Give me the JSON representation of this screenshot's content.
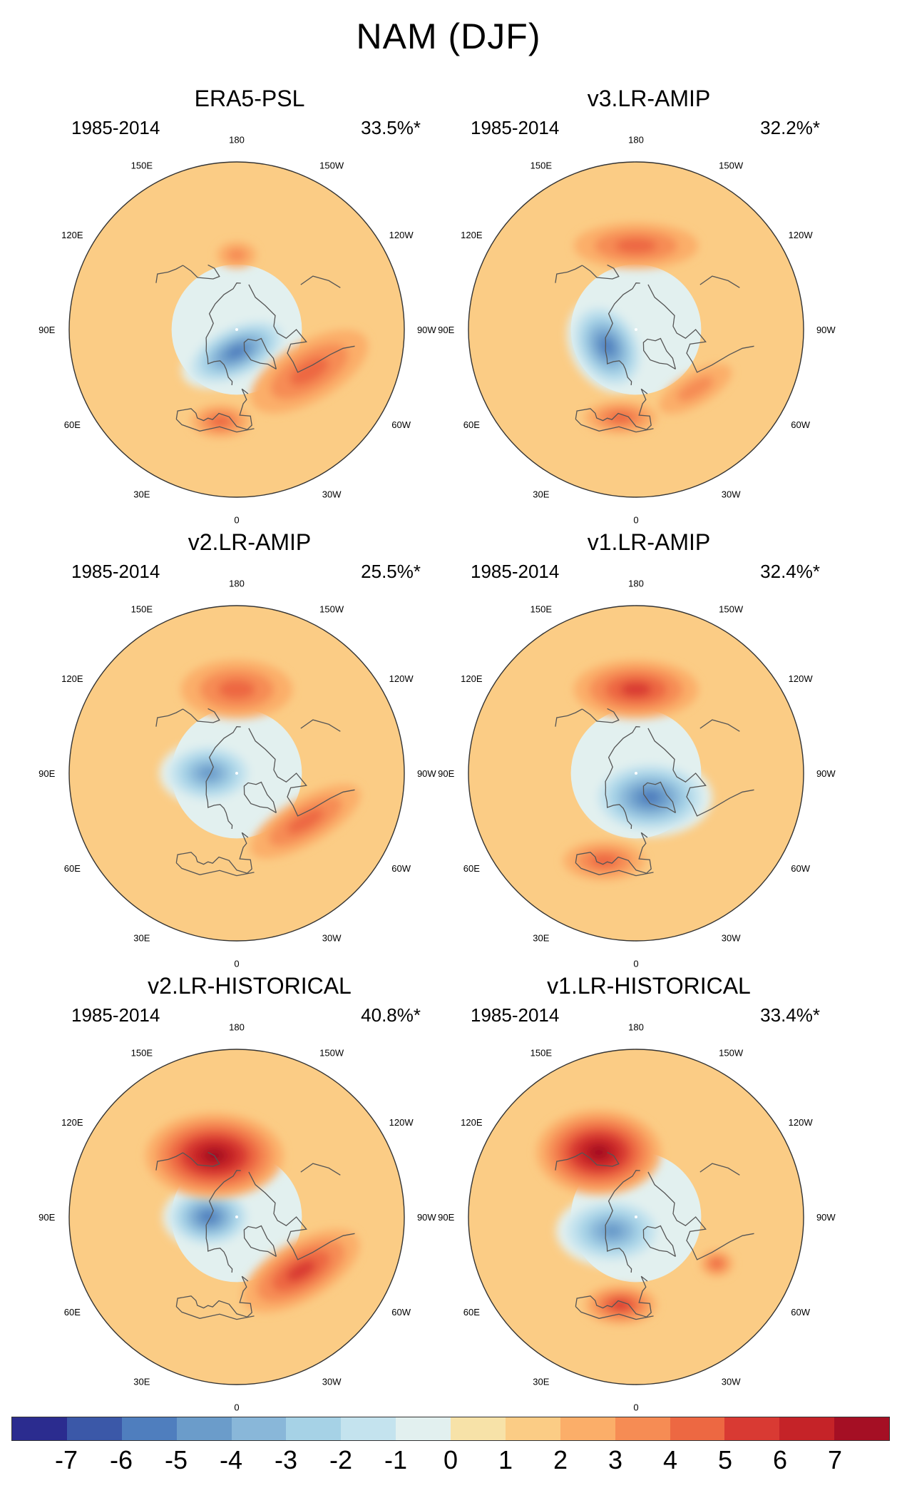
{
  "figure_title": "NAM (DJF)",
  "panels": [
    {
      "title": "ERA5-PSL",
      "period": "1985-2014",
      "explained_variance": "33.5%*",
      "features": [
        {
          "lon": 0,
          "lat": 78,
          "rx": 36,
          "ry": 18,
          "rot": -25,
          "level": -6
        },
        {
          "lon": -60,
          "lat": 45,
          "rx": 40,
          "ry": 18,
          "rot": -30,
          "level": 3
        },
        {
          "lon": 10,
          "lat": 40,
          "rx": 18,
          "ry": 10,
          "rot": 0,
          "level": 3
        },
        {
          "lon": 180,
          "lat": 50,
          "rx": 12,
          "ry": 8,
          "rot": 0,
          "level": 2
        }
      ]
    },
    {
      "title": "v3.LR-AMIP",
      "period": "1985-2014",
      "explained_variance": "32.2%*",
      "features": [
        {
          "lon": 60,
          "lat": 72,
          "rx": 30,
          "ry": 22,
          "rot": 60,
          "level": -6
        },
        {
          "lon": 180,
          "lat": 45,
          "rx": 38,
          "ry": 14,
          "rot": 0,
          "level": 3
        },
        {
          "lon": -45,
          "lat": 45,
          "rx": 25,
          "ry": 10,
          "rot": -30,
          "level": 2
        },
        {
          "lon": 10,
          "lat": 42,
          "rx": 22,
          "ry": 10,
          "rot": 0,
          "level": 3
        }
      ]
    },
    {
      "title": "v2.LR-AMIP",
      "period": "1985-2014",
      "explained_variance": "25.5%*",
      "features": [
        {
          "lon": 90,
          "lat": 75,
          "rx": 30,
          "ry": 20,
          "rot": 0,
          "level": -5
        },
        {
          "lon": 180,
          "lat": 45,
          "rx": 34,
          "ry": 18,
          "rot": 0,
          "level": 3
        },
        {
          "lon": -55,
          "lat": 45,
          "rx": 38,
          "ry": 14,
          "rot": -30,
          "level": 3
        }
      ]
    },
    {
      "title": "v1.LR-AMIP",
      "period": "1985-2014",
      "explained_variance": "32.4%*",
      "features": [
        {
          "lon": -30,
          "lat": 75,
          "rx": 38,
          "ry": 24,
          "rot": 0,
          "level": -6
        },
        {
          "lon": 180,
          "lat": 45,
          "rx": 38,
          "ry": 18,
          "rot": 0,
          "level": 4
        },
        {
          "lon": 20,
          "lat": 40,
          "rx": 25,
          "ry": 12,
          "rot": 0,
          "level": 3
        }
      ]
    },
    {
      "title": "v2.LR-HISTORICAL",
      "period": "1985-2014",
      "explained_variance": "40.8%*",
      "features": [
        {
          "lon": 90,
          "lat": 75,
          "rx": 28,
          "ry": 20,
          "rot": 0,
          "level": -6
        },
        {
          "lon": 160,
          "lat": 55,
          "rx": 42,
          "ry": 26,
          "rot": 0,
          "level": 6
        },
        {
          "lon": -50,
          "lat": 45,
          "rx": 40,
          "ry": 18,
          "rot": -30,
          "level": 4
        }
      ]
    },
    {
      "title": "v1.LR-HISTORICAL",
      "period": "1985-2014",
      "explained_variance": "33.4%*",
      "features": [
        {
          "lon": 60,
          "lat": 75,
          "rx": 34,
          "ry": 22,
          "rot": 0,
          "level": -5
        },
        {
          "lon": 150,
          "lat": 50,
          "rx": 38,
          "ry": 26,
          "rot": 0,
          "level": 6
        },
        {
          "lon": 10,
          "lat": 42,
          "rx": 22,
          "ry": 12,
          "rot": 0,
          "level": 4
        },
        {
          "lon": -60,
          "lat": 40,
          "rx": 10,
          "ry": 8,
          "rot": 0,
          "level": 3
        }
      ]
    }
  ],
  "longitude_labels": [
    "180",
    "150E",
    "120E",
    "90E",
    "60E",
    "30E",
    "0",
    "30W",
    "60W",
    "90W",
    "120W",
    "150W"
  ],
  "colorbar": {
    "labels": [
      "-7",
      "-6",
      "-5",
      "-4",
      "-3",
      "-2",
      "-1",
      "0",
      "1",
      "2",
      "3",
      "4",
      "5",
      "6",
      "7"
    ],
    "colors": [
      "#2b2c8f",
      "#3b58a8",
      "#4f7ebe",
      "#6b9cca",
      "#89b7d9",
      "#a6d2e6",
      "#c4e3ee",
      "#e2f0ef",
      "#f7e2a8",
      "#fbcc85",
      "#fbae69",
      "#f68c54",
      "#ed6842",
      "#d93a33",
      "#c52328",
      "#a50f24"
    ]
  }
}
